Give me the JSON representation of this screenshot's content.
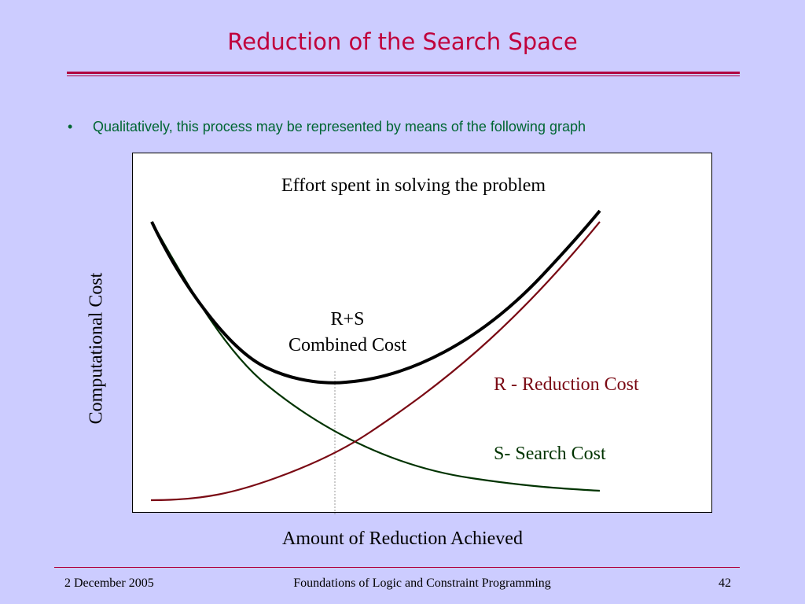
{
  "slide": {
    "title": "Reduction of the Search Space",
    "bullet_marker": "•",
    "bullet_text": "Qualitatively, this process may be represented by means of the following graph"
  },
  "graph": {
    "title": "Effort spent in solving the problem",
    "combined_label_line1": "R+S",
    "combined_label_line2": "Combined Cost",
    "reduction_label": "R - Reduction Cost",
    "search_label": "S- Search Cost",
    "y_axis_label": "Computational Cost",
    "x_axis_label": "Amount of Reduction Achieved",
    "colors": {
      "combined": "#000000",
      "reduction": "#7a0a14",
      "search": "#003300",
      "marker_line": "#999999"
    }
  },
  "footer": {
    "date": "2 December 2005",
    "course": "Foundations of Logic and Constraint Programming",
    "page": "42"
  },
  "colors": {
    "background": "#ccccff",
    "title": "#c0003c",
    "bullet": "#006633",
    "rule": "#b00040"
  }
}
